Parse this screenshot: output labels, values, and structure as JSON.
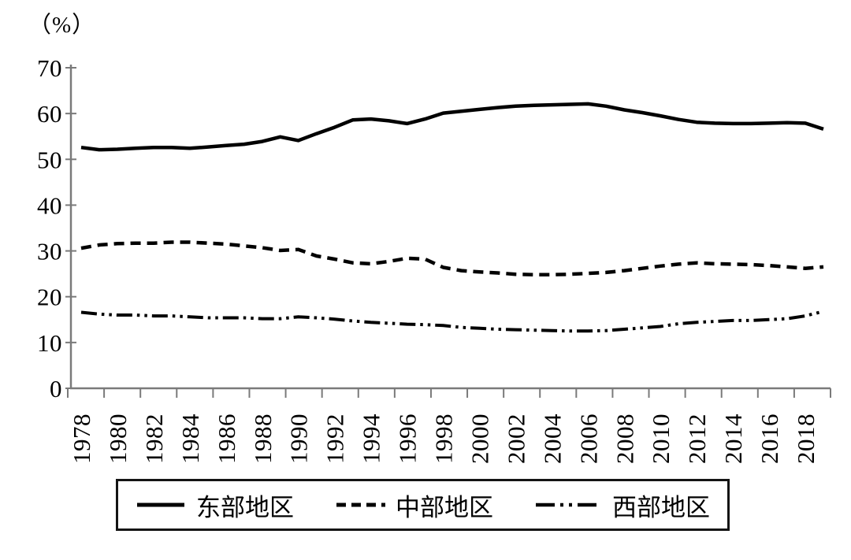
{
  "figure": {
    "background": "#ffffff"
  },
  "chart_data": {
    "type": "line",
    "title": "",
    "xlabel": "",
    "ylabel": "（%）",
    "ylim": [
      0,
      70
    ],
    "yticks": [
      0,
      10,
      20,
      30,
      40,
      50,
      60,
      70
    ],
    "grid": false,
    "legend_position": "bottom",
    "colors": {
      "axis": "#7a7a7a",
      "line": "#000000",
      "text": "#000000",
      "background": "#ffffff"
    },
    "x": [
      1978,
      1979,
      1980,
      1981,
      1982,
      1983,
      1984,
      1985,
      1986,
      1987,
      1988,
      1989,
      1990,
      1991,
      1992,
      1993,
      1994,
      1995,
      1996,
      1997,
      1998,
      1999,
      2000,
      2001,
      2002,
      2003,
      2004,
      2005,
      2006,
      2007,
      2008,
      2009,
      2010,
      2011,
      2012,
      2013,
      2014,
      2015,
      2016,
      2017,
      2018,
      2019
    ],
    "x_tick_labels": [
      "1978",
      "1980",
      "1982",
      "1984",
      "1986",
      "1988",
      "1990",
      "1992",
      "1994",
      "1996",
      "1998",
      "2000",
      "2002",
      "2004",
      "2006",
      "2008",
      "2010",
      "2012",
      "2014",
      "2016",
      "2018"
    ],
    "series": [
      {
        "id": "east",
        "name": "东部地区",
        "line_style": "solid",
        "color": "#000000",
        "stroke_width": 4.5,
        "dash": "",
        "legend_dash": "",
        "legend_stroke_width": 5,
        "values": [
          52.6,
          52.1,
          52.2,
          52.4,
          52.6,
          52.6,
          52.4,
          52.7,
          53.0,
          53.3,
          53.9,
          54.9,
          54.1,
          55.6,
          57.0,
          58.6,
          58.8,
          58.4,
          57.8,
          58.8,
          60.1,
          60.5,
          60.9,
          61.3,
          61.6,
          61.8,
          61.9,
          62.0,
          62.1,
          61.6,
          60.8,
          60.2,
          59.5,
          58.7,
          58.1,
          57.9,
          57.8,
          57.8,
          57.9,
          58.0,
          57.9,
          56.6
        ]
      },
      {
        "id": "central",
        "name": "中部地区",
        "line_style": "dashed",
        "color": "#000000",
        "stroke_width": 4.5,
        "dash": "13 8",
        "legend_dash": "12 7",
        "legend_stroke_width": 5,
        "values": [
          30.6,
          31.3,
          31.6,
          31.7,
          31.7,
          31.9,
          31.9,
          31.7,
          31.5,
          31.1,
          30.7,
          30.1,
          30.3,
          28.9,
          28.2,
          27.4,
          27.2,
          27.7,
          28.4,
          28.2,
          26.4,
          25.7,
          25.4,
          25.2,
          24.9,
          24.8,
          24.8,
          24.9,
          25.1,
          25.3,
          25.7,
          26.2,
          26.7,
          27.1,
          27.4,
          27.2,
          27.1,
          27.0,
          26.8,
          26.5,
          26.2,
          26.5
        ]
      },
      {
        "id": "west",
        "name": "西部地区",
        "line_style": "dash-dot-dot",
        "color": "#000000",
        "stroke_width": 4,
        "dash": "20 6 3.5 6 3.5 6",
        "legend_dash": "24 7 4 7 4 7",
        "legend_stroke_width": 4.5,
        "values": [
          16.6,
          16.2,
          16.0,
          16.0,
          15.8,
          15.8,
          15.6,
          15.4,
          15.4,
          15.4,
          15.2,
          15.2,
          15.6,
          15.4,
          15.1,
          14.7,
          14.4,
          14.2,
          14.0,
          13.9,
          13.7,
          13.3,
          13.1,
          12.9,
          12.8,
          12.7,
          12.6,
          12.5,
          12.5,
          12.6,
          12.9,
          13.2,
          13.5,
          14.1,
          14.4,
          14.6,
          14.8,
          14.8,
          15.0,
          15.2,
          15.8,
          16.8
        ]
      }
    ]
  }
}
